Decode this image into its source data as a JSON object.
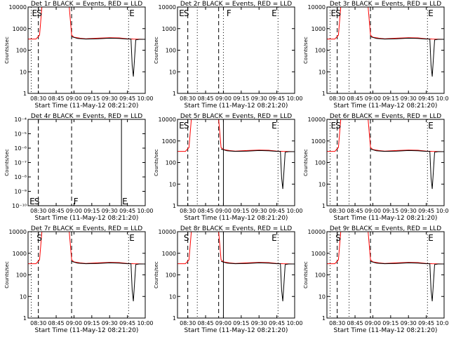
{
  "colors": {
    "events": "#000000",
    "lld": "#ff0000",
    "axis": "#000000",
    "background": "#ffffff"
  },
  "chart_data": [
    {
      "type": "line",
      "title": "Det 1r BLACK = Events, RED = LLD",
      "xlabel": "Start Time (11-May-12 08:21:20)",
      "ylabel": "Counts/sec",
      "xlim": [
        "08:21:20",
        "10:00"
      ],
      "x_ticks": [
        "08:30",
        "08:45",
        "09:00",
        "09:15",
        "09:30",
        "09:45",
        "10:00"
      ],
      "ylim": [
        1,
        10000
      ],
      "yscale": "log",
      "y_ticks": [
        "1",
        "10",
        "100",
        "1000",
        "10000"
      ],
      "markers": [
        {
          "time": "08:24",
          "label": "E"
        },
        {
          "time": "08:28",
          "label": "S"
        },
        {
          "time": "09:46",
          "label": "E"
        }
      ],
      "dashed_lines": [
        "08:30",
        "08:58"
      ],
      "dotted_lines": [
        "08:24",
        "09:46"
      ],
      "solid_lines": [],
      "series": [
        {
          "name": "Events",
          "color": "black",
          "x": [
            "08:58",
            "09:03",
            "09:10",
            "09:20",
            "09:30",
            "09:38",
            "09:45",
            "09:48",
            "09:49",
            "09:50",
            "09:52",
            "09:55",
            "10:00"
          ],
          "y": [
            420,
            350,
            330,
            340,
            360,
            350,
            330,
            330,
            20,
            6,
            300,
            320,
            320
          ]
        },
        {
          "name": "LLD",
          "color": "red",
          "x": [
            "08:21:20",
            "08:28",
            "08:31",
            "08:33",
            "08:45",
            "08:56",
            "08:58",
            "09:00",
            "09:05",
            "09:10",
            "09:20",
            "09:30",
            "09:38",
            "09:45",
            "09:50",
            "10:00"
          ],
          "y": [
            330,
            330,
            500,
            10000,
            10000,
            10000,
            500,
            400,
            360,
            340,
            360,
            380,
            370,
            340,
            330,
            320
          ]
        }
      ]
    },
    {
      "type": "line",
      "title": "Det 2r BLACK = Events, RED = LLD",
      "xlabel": "Start Time (11-May-12 08:21:20)",
      "ylabel": "Counts/sec",
      "xlim": [
        "08:21:20",
        "10:00"
      ],
      "x_ticks": [
        "08:30",
        "08:45",
        "09:00",
        "09:15",
        "09:30",
        "09:45",
        "10:00"
      ],
      "ylim": [
        1,
        10000
      ],
      "yscale": "log",
      "y_ticks": [
        "1",
        "10",
        "100",
        "1000",
        "10000"
      ],
      "markers": [
        {
          "time": "08:22",
          "label": "E"
        },
        {
          "time": "08:26",
          "label": "S"
        },
        {
          "time": "09:02",
          "label": "F"
        },
        {
          "time": "09:40",
          "label": "E"
        }
      ],
      "dashed_lines": [
        "08:30",
        "08:56"
      ],
      "dotted_lines": [
        "08:38",
        "09:00",
        "09:46"
      ],
      "solid_lines": [],
      "series": []
    },
    {
      "type": "line",
      "title": "Det 3r BLACK = Events, RED = LLD",
      "xlabel": "Start Time (11-May-12 08:21:20)",
      "ylabel": "Counts/sec",
      "xlim": [
        "08:21:20",
        "10:00"
      ],
      "x_ticks": [
        "08:30",
        "08:45",
        "09:00",
        "09:15",
        "09:30",
        "09:45",
        "10:00"
      ],
      "ylim": [
        1,
        10000
      ],
      "yscale": "log",
      "y_ticks": [
        "1",
        "10",
        "100",
        "1000",
        "10000"
      ],
      "markers": [
        {
          "time": "08:24",
          "label": "E"
        },
        {
          "time": "08:28",
          "label": "S"
        },
        {
          "time": "09:46",
          "label": "E"
        }
      ],
      "dashed_lines": [
        "08:30",
        "08:58"
      ],
      "dotted_lines": [
        "08:24",
        "08:40",
        "09:46"
      ],
      "solid_lines": [],
      "series": [
        {
          "name": "Events",
          "color": "black",
          "x": [
            "08:58",
            "09:03",
            "09:10",
            "09:20",
            "09:30",
            "09:38",
            "09:45",
            "09:48",
            "09:49",
            "09:50",
            "09:52",
            "09:55",
            "10:00"
          ],
          "y": [
            420,
            350,
            330,
            340,
            360,
            350,
            330,
            330,
            20,
            6,
            300,
            320,
            320
          ]
        },
        {
          "name": "LLD",
          "color": "red",
          "x": [
            "08:21:20",
            "08:28",
            "08:31",
            "08:33",
            "08:45",
            "08:56",
            "08:58",
            "09:00",
            "09:05",
            "09:10",
            "09:20",
            "09:30",
            "09:38",
            "09:45",
            "09:50",
            "10:00"
          ],
          "y": [
            330,
            330,
            500,
            10000,
            10000,
            10000,
            500,
            400,
            360,
            340,
            360,
            380,
            370,
            340,
            330,
            320
          ]
        }
      ]
    },
    {
      "type": "line",
      "title": "Det 4r BLACK = Events, RED = LLD",
      "xlabel": "Start Time (11-May-12 08:21:20)",
      "ylabel": "Counts/sec",
      "xlim": [
        "08:21:20",
        "10:00"
      ],
      "x_ticks": [
        "08:30",
        "08:45",
        "09:00",
        "09:15",
        "09:30",
        "09:45",
        "10:00"
      ],
      "ylim": [
        1e-10,
        0.0001
      ],
      "yscale": "log",
      "y_ticks": [
        "10⁻¹⁰",
        "10⁻⁹",
        "10⁻⁸",
        "10⁻⁷",
        "10⁻⁶",
        "10⁻⁵",
        "10⁻⁴"
      ],
      "markers": [
        {
          "time": "08:22",
          "label": "E"
        },
        {
          "time": "08:26",
          "label": "S"
        },
        {
          "time": "08:59",
          "label": "F"
        },
        {
          "time": "09:40",
          "label": "E"
        }
      ],
      "dashed_lines": [
        "08:30",
        "08:58"
      ],
      "dotted_lines": [],
      "solid_lines": [
        "09:40"
      ],
      "series": []
    },
    {
      "type": "line",
      "title": "Det 5r BLACK = Events, RED = LLD",
      "xlabel": "Start Time (11-May-12 08:21:20)",
      "ylabel": "Counts/sec",
      "xlim": [
        "08:21:20",
        "10:00"
      ],
      "x_ticks": [
        "08:30",
        "08:45",
        "09:00",
        "09:15",
        "09:30",
        "09:45",
        "10:00"
      ],
      "ylim": [
        1,
        10000
      ],
      "yscale": "log",
      "y_ticks": [
        "1",
        "10",
        "100",
        "1000",
        "10000"
      ],
      "markers": [
        {
          "time": "08:22",
          "label": "E"
        },
        {
          "time": "08:26",
          "label": "S"
        },
        {
          "time": "09:40",
          "label": "E"
        }
      ],
      "dashed_lines": [
        "08:30",
        "08:56"
      ],
      "dotted_lines": [
        "08:38",
        "09:46"
      ],
      "solid_lines": [
        "09:00"
      ],
      "series": [
        {
          "name": "Events",
          "color": "black",
          "x": [
            "08:58",
            "09:03",
            "09:10",
            "09:20",
            "09:30",
            "09:38",
            "09:45",
            "09:48",
            "09:49",
            "09:50",
            "09:52",
            "09:55",
            "10:00"
          ],
          "y": [
            420,
            350,
            330,
            340,
            360,
            350,
            330,
            330,
            20,
            6,
            300,
            320,
            320
          ]
        },
        {
          "name": "LLD",
          "color": "red",
          "x": [
            "08:21:20",
            "08:28",
            "08:31",
            "08:33",
            "08:45",
            "08:56",
            "08:58",
            "09:00",
            "09:05",
            "09:10",
            "09:20",
            "09:30",
            "09:38",
            "09:45",
            "09:50",
            "10:00"
          ],
          "y": [
            330,
            330,
            500,
            10000,
            10000,
            10000,
            500,
            400,
            360,
            340,
            360,
            380,
            370,
            340,
            330,
            320
          ]
        }
      ]
    },
    {
      "type": "line",
      "title": "Det 6r BLACK = Events, RED = LLD",
      "xlabel": "Start Time (11-May-12 08:21:20)",
      "ylabel": "Counts/sec",
      "xlim": [
        "08:21:20",
        "10:00"
      ],
      "x_ticks": [
        "08:30",
        "08:45",
        "09:00",
        "09:15",
        "09:30",
        "09:45",
        "10:00"
      ],
      "ylim": [
        1,
        10000
      ],
      "yscale": "log",
      "y_ticks": [
        "1",
        "10",
        "100",
        "1000",
        "10000"
      ],
      "markers": [
        {
          "time": "08:24",
          "label": "E"
        },
        {
          "time": "08:28",
          "label": "S"
        },
        {
          "time": "09:46",
          "label": "E"
        }
      ],
      "dashed_lines": [
        "08:30",
        "08:58"
      ],
      "dotted_lines": [
        "08:24",
        "08:40",
        "09:46"
      ],
      "solid_lines": [],
      "series": [
        {
          "name": "Events",
          "color": "black",
          "x": [
            "08:58",
            "09:03",
            "09:10",
            "09:20",
            "09:30",
            "09:38",
            "09:45",
            "09:48",
            "09:49",
            "09:50",
            "09:52",
            "09:55",
            "10:00"
          ],
          "y": [
            420,
            350,
            330,
            340,
            360,
            350,
            330,
            330,
            20,
            6,
            300,
            320,
            320
          ]
        },
        {
          "name": "LLD",
          "color": "red",
          "x": [
            "08:21:20",
            "08:28",
            "08:31",
            "08:33",
            "08:45",
            "08:56",
            "08:58",
            "09:00",
            "09:05",
            "09:10",
            "09:20",
            "09:30",
            "09:38",
            "09:45",
            "09:50",
            "10:00"
          ],
          "y": [
            330,
            330,
            500,
            10000,
            10000,
            10000,
            500,
            400,
            360,
            340,
            360,
            380,
            370,
            340,
            330,
            320
          ]
        }
      ]
    },
    {
      "type": "line",
      "title": "Det 7r BLACK = Events, RED = LLD",
      "xlabel": "Start Time (11-May-12 08:21:20)",
      "ylabel": "Counts/sec",
      "xlim": [
        "08:21:20",
        "10:00"
      ],
      "x_ticks": [
        "08:30",
        "08:45",
        "09:00",
        "09:15",
        "09:30",
        "09:45",
        "10:00"
      ],
      "ylim": [
        1,
        10000
      ],
      "yscale": "log",
      "y_ticks": [
        "1",
        "10",
        "100",
        "1000",
        "10000"
      ],
      "markers": [
        {
          "time": "08:28",
          "label": "S"
        },
        {
          "time": "09:46",
          "label": "E"
        }
      ],
      "dashed_lines": [
        "08:30",
        "08:58"
      ],
      "dotted_lines": [
        "08:24",
        "09:46"
      ],
      "solid_lines": [],
      "series": [
        {
          "name": "Events",
          "color": "black",
          "x": [
            "08:58",
            "09:03",
            "09:10",
            "09:20",
            "09:30",
            "09:38",
            "09:45",
            "09:48",
            "09:49",
            "09:50",
            "09:52",
            "09:55",
            "10:00"
          ],
          "y": [
            420,
            350,
            330,
            340,
            360,
            350,
            330,
            330,
            20,
            6,
            300,
            320,
            320
          ]
        },
        {
          "name": "LLD",
          "color": "red",
          "x": [
            "08:21:20",
            "08:28",
            "08:31",
            "08:33",
            "08:45",
            "08:56",
            "08:58",
            "09:00",
            "09:05",
            "09:10",
            "09:20",
            "09:30",
            "09:38",
            "09:45",
            "09:50",
            "10:00"
          ],
          "y": [
            330,
            330,
            500,
            10000,
            10000,
            10000,
            500,
            400,
            360,
            340,
            360,
            380,
            370,
            340,
            330,
            320
          ]
        }
      ]
    },
    {
      "type": "line",
      "title": "Det 8r BLACK = Events, RED = LLD",
      "xlabel": "Start Time (11-May-12 08:21:20)",
      "ylabel": "Counts/sec",
      "xlim": [
        "08:21:20",
        "10:00"
      ],
      "x_ticks": [
        "08:30",
        "08:45",
        "09:00",
        "09:15",
        "09:30",
        "09:45",
        "10:00"
      ],
      "ylim": [
        1,
        10000
      ],
      "yscale": "log",
      "y_ticks": [
        "1",
        "10",
        "100",
        "1000",
        "10000"
      ],
      "markers": [
        {
          "time": "08:26",
          "label": "S"
        },
        {
          "time": "09:40",
          "label": "E"
        }
      ],
      "dashed_lines": [
        "08:30",
        "08:56"
      ],
      "dotted_lines": [
        "08:38",
        "09:46"
      ],
      "solid_lines": [
        "09:00"
      ],
      "series": [
        {
          "name": "Events",
          "color": "black",
          "x": [
            "08:58",
            "09:03",
            "09:10",
            "09:20",
            "09:30",
            "09:38",
            "09:45",
            "09:48",
            "09:49",
            "09:50",
            "09:52",
            "09:55",
            "10:00"
          ],
          "y": [
            420,
            350,
            330,
            340,
            360,
            350,
            330,
            330,
            20,
            6,
            300,
            320,
            320
          ]
        },
        {
          "name": "LLD",
          "color": "red",
          "x": [
            "08:21:20",
            "08:28",
            "08:31",
            "08:33",
            "08:45",
            "08:56",
            "08:58",
            "09:00",
            "09:05",
            "09:10",
            "09:20",
            "09:30",
            "09:38",
            "09:45",
            "09:50",
            "10:00"
          ],
          "y": [
            330,
            330,
            500,
            10000,
            10000,
            10000,
            500,
            400,
            360,
            340,
            360,
            380,
            370,
            340,
            330,
            320
          ]
        }
      ]
    },
    {
      "type": "line",
      "title": "Det 9r BLACK = Events, RED = LLD",
      "xlabel": "Start Time (11-May-12 08:21:20)",
      "ylabel": "Counts/sec",
      "xlim": [
        "08:21:20",
        "10:00"
      ],
      "x_ticks": [
        "08:30",
        "08:45",
        "09:00",
        "09:15",
        "09:30",
        "09:45",
        "10:00"
      ],
      "ylim": [
        1,
        10000
      ],
      "yscale": "log",
      "y_ticks": [
        "1",
        "10",
        "100",
        "1000",
        "10000"
      ],
      "markers": [
        {
          "time": "08:28",
          "label": "S"
        },
        {
          "time": "09:46",
          "label": "E"
        }
      ],
      "dashed_lines": [
        "08:30",
        "08:58"
      ],
      "dotted_lines": [
        "08:24",
        "08:40",
        "09:46"
      ],
      "solid_lines": [],
      "series": [
        {
          "name": "Events",
          "color": "black",
          "x": [
            "08:58",
            "09:03",
            "09:10",
            "09:20",
            "09:30",
            "09:38",
            "09:45",
            "09:48",
            "09:49",
            "09:50",
            "09:52",
            "09:55",
            "10:00"
          ],
          "y": [
            420,
            350,
            330,
            340,
            360,
            350,
            330,
            330,
            20,
            6,
            300,
            320,
            320
          ]
        },
        {
          "name": "LLD",
          "color": "red",
          "x": [
            "08:21:20",
            "08:28",
            "08:31",
            "08:33",
            "08:45",
            "08:56",
            "08:58",
            "09:00",
            "09:05",
            "09:10",
            "09:20",
            "09:30",
            "09:38",
            "09:45",
            "09:50",
            "10:00"
          ],
          "y": [
            330,
            330,
            500,
            10000,
            10000,
            10000,
            500,
            400,
            360,
            340,
            360,
            380,
            370,
            340,
            330,
            320
          ]
        }
      ]
    }
  ]
}
